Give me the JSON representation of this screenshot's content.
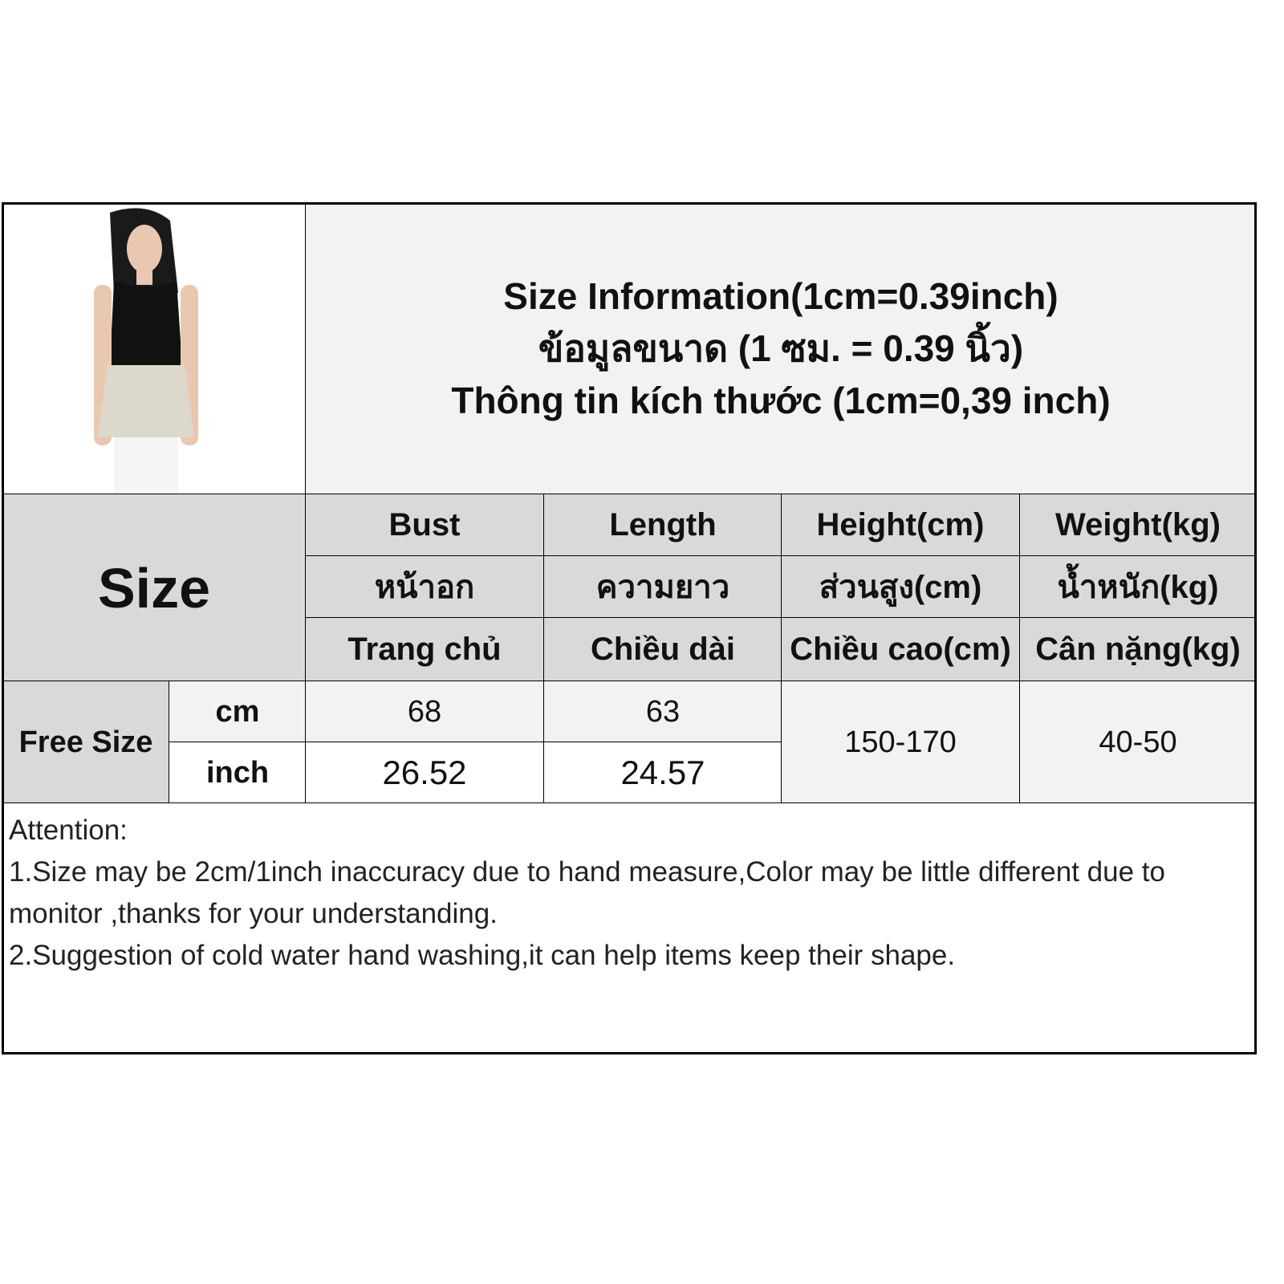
{
  "title": {
    "line1": "Size Information(1cm=0.39inch)",
    "line2": "ข้อมูลขนาด (1 ซม. = 0.39 นิ้ว)",
    "line3": "Thông tin kích thước (1cm=0,39 inch)"
  },
  "size_label": "Size",
  "columns": [
    {
      "en": "Bust",
      "th": "หน้าอก",
      "vi": "Trang chủ"
    },
    {
      "en": "Length",
      "th": "ความยาว",
      "vi": "Chiều dài"
    },
    {
      "en": "Height(cm)",
      "th": "ส่วนสูง(cm)",
      "vi": "Chiều cao(cm)"
    },
    {
      "en": "Weight(kg)",
      "th": "น้ำหนัก(kg)",
      "vi": "Cân nặng(kg)"
    }
  ],
  "row": {
    "label": "Free  Size",
    "unit_cm": "cm",
    "unit_inch": "inch",
    "bust_cm": "68",
    "length_cm": "63",
    "bust_inch": "26.52",
    "length_inch": "24.57",
    "height": "150-170",
    "weight": "40-50"
  },
  "attention": {
    "heading": "Attention:",
    "line1": "1.Size may be 2cm/1inch inaccuracy due to hand measure,Color may be little different due to monitor ,thanks for your understanding.",
    "line2": "2.Suggestion of cold water hand washing,it can help items keep their shape."
  },
  "colors": {
    "header": "#d9d9d9",
    "light": "#f2f2f2",
    "border": "#000000"
  }
}
